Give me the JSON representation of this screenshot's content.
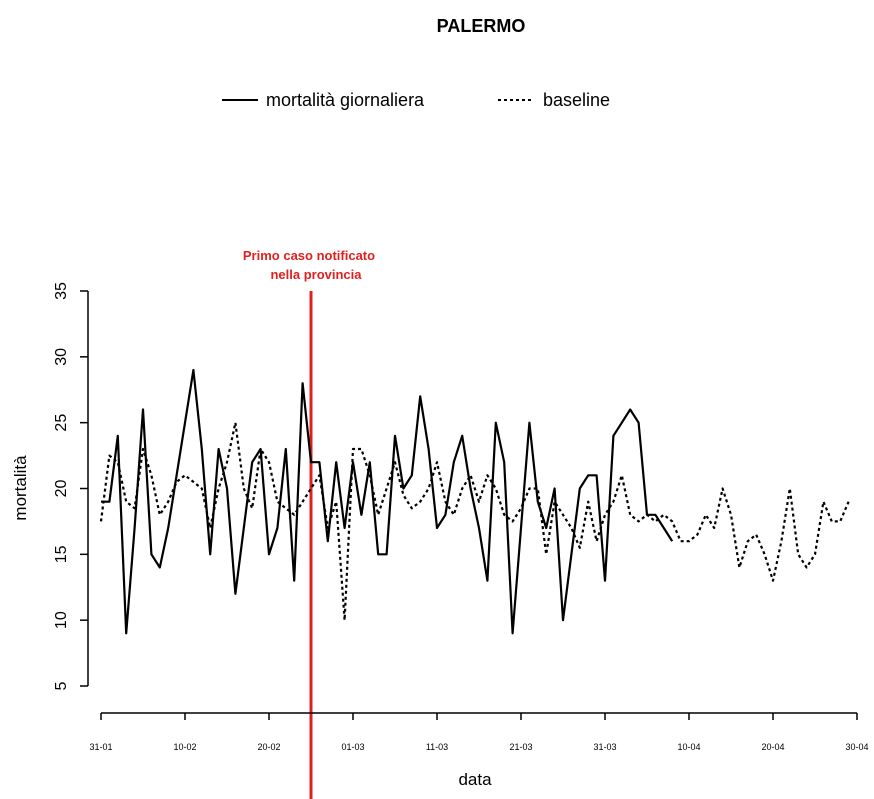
{
  "chart_data": {
    "type": "line",
    "title": "PALERMO",
    "xlabel": "data",
    "ylabel": "mortalità",
    "ylim": [
      5,
      35
    ],
    "yticks": [
      5,
      10,
      15,
      20,
      25,
      30,
      35
    ],
    "x_start": "31-01",
    "x_ticks": [
      {
        "label": "31-01",
        "day": 0
      },
      {
        "label": "10-02",
        "day": 10
      },
      {
        "label": "20-02",
        "day": 20
      },
      {
        "label": "01-03",
        "day": 30
      },
      {
        "label": "11-03",
        "day": 40
      },
      {
        "label": "21-03",
        "day": 50
      },
      {
        "label": "31-03",
        "day": 60
      },
      {
        "label": "10-04",
        "day": 70
      },
      {
        "label": "20-04",
        "day": 80
      },
      {
        "label": "30-04",
        "day": 90
      }
    ],
    "legend": {
      "placement": "top-center",
      "items": [
        {
          "label": "mortalità giornaliera",
          "style": "solid"
        },
        {
          "label": "baseline",
          "style": "dotted"
        }
      ]
    },
    "annotation": {
      "day": 25,
      "line1": "Primo caso notificato",
      "line2": "nella provincia",
      "color": "#e02020"
    },
    "series": [
      {
        "name": "mortalità giornaliera",
        "style": "solid",
        "color": "#000000",
        "start_day": 0,
        "values": [
          19,
          19,
          24,
          9,
          17,
          26,
          15,
          14,
          17,
          21,
          25,
          29,
          23,
          15,
          23,
          20,
          12,
          17,
          22,
          23,
          15,
          17,
          23,
          13,
          28,
          22,
          22,
          16,
          22,
          17,
          22,
          18,
          22,
          15,
          15,
          24,
          20,
          21,
          27,
          23,
          17,
          18,
          22,
          24,
          20,
          17,
          13,
          25,
          22,
          9,
          17,
          25,
          19,
          17,
          20,
          10,
          15,
          20,
          21,
          21,
          13,
          24,
          25,
          26,
          25,
          18,
          18,
          17,
          16
        ]
      },
      {
        "name": "baseline",
        "style": "dotted",
        "color": "#000000",
        "start_day": 0,
        "values": [
          17.5,
          22.5,
          22,
          19,
          18.5,
          23,
          21,
          18,
          19,
          20.5,
          21,
          20.5,
          20,
          17,
          20,
          22,
          25,
          20,
          18.5,
          23,
          22,
          19,
          18.5,
          18,
          19,
          20,
          21,
          17,
          19,
          10,
          23,
          23,
          21,
          18,
          20,
          22,
          19.5,
          18.5,
          19,
          20,
          22,
          19,
          18,
          20,
          21,
          19,
          21,
          20,
          18,
          17.5,
          18.5,
          20,
          20,
          15,
          19,
          18,
          17,
          15.5,
          19,
          16,
          18,
          19,
          21,
          18,
          17.5,
          18,
          17.5,
          18,
          17.5,
          16,
          16,
          16.5,
          18,
          17,
          20,
          18,
          14,
          16,
          16.5,
          15,
          13,
          16,
          20,
          15,
          14,
          15,
          19,
          17.5,
          17.5,
          19
        ]
      }
    ]
  }
}
